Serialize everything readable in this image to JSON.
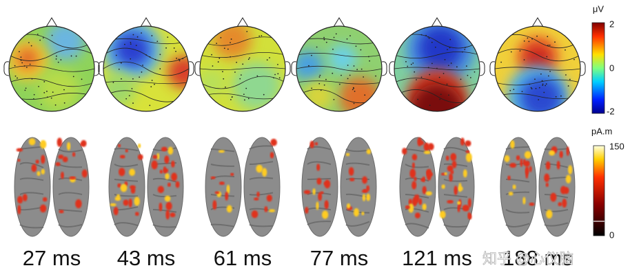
{
  "panels": [
    {
      "label": "27 ms"
    },
    {
      "label": "43 ms"
    },
    {
      "label": "61 ms"
    },
    {
      "label": "77 ms"
    },
    {
      "label": "121 ms"
    },
    {
      "label": "188 ms"
    }
  ],
  "topo_colorbar": {
    "unit": "μV",
    "ticks": [
      2,
      0,
      -2
    ]
  },
  "source_colorbar": {
    "unit": "pA.m",
    "ticks": [
      150,
      0
    ]
  },
  "watermark": "知乎 @心仪脑"
}
